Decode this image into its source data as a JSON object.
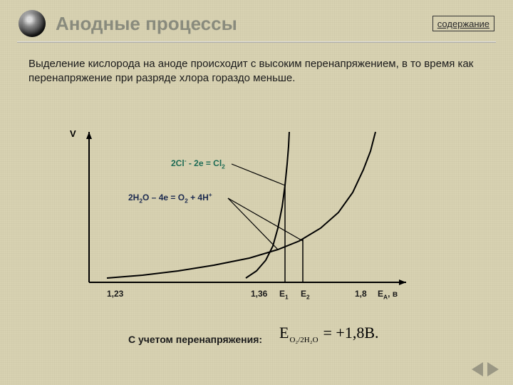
{
  "header": {
    "title": "Анодные процессы",
    "toc_label": "содержание"
  },
  "paragraph": "Выделение кислорода на аноде происходит с высоким перенапряжением, в то время как перенапряжение при разряде хлора гораздо меньше.",
  "chart": {
    "type": "line",
    "y_label": "V",
    "background_color": "#d8d2b2",
    "axis_color": "#000000",
    "axis_width": 2,
    "curve_color": "#000000",
    "curve_width": 2,
    "xlim": [
      0,
      480
    ],
    "ylim": [
      0,
      210
    ],
    "x_ticks": [
      {
        "x": 60,
        "label": "1,23"
      },
      {
        "x": 262,
        "label": "1,36"
      },
      {
        "x": 302,
        "label_html": "E<sub>1</sub>"
      },
      {
        "x": 332,
        "label_html": "E<sub>2</sub>"
      },
      {
        "x": 408,
        "label": "1,8"
      },
      {
        "x": 440,
        "label_html": "E<sub>A</sub>, в"
      }
    ],
    "curves": [
      {
        "name": "O2",
        "label_html": "2H<sub>2</sub>O – 4e = O<sub>2</sub> + 4H<sup>+</sup>",
        "label_color": "#1c2a4f",
        "label_pos": {
          "x": 90,
          "y": 88
        },
        "points": [
          [
            60,
            210
          ],
          [
            110,
            206
          ],
          [
            160,
            200
          ],
          [
            210,
            192
          ],
          [
            260,
            182
          ],
          [
            300,
            170
          ],
          [
            330,
            158
          ],
          [
            360,
            140
          ],
          [
            385,
            118
          ],
          [
            405,
            90
          ],
          [
            420,
            58
          ],
          [
            430,
            32
          ],
          [
            437,
            5
          ]
        ]
      },
      {
        "name": "Cl2",
        "label_html": "2Cl<sup>-</sup> - 2e = Cl<sub>2</sub>",
        "label_color": "#1d6b54",
        "label_pos": {
          "x": 150,
          "y": 40
        },
        "points": [
          [
            255,
            210
          ],
          [
            270,
            200
          ],
          [
            283,
            185
          ],
          [
            293,
            165
          ],
          [
            300,
            140
          ],
          [
            306,
            110
          ],
          [
            310,
            80
          ],
          [
            313,
            50
          ],
          [
            315,
            25
          ],
          [
            316,
            5
          ]
        ]
      }
    ],
    "verticals": [
      {
        "x": 310,
        "y_from": 80,
        "y_to": 216
      },
      {
        "x": 335,
        "y_from": 155,
        "y_to": 216
      }
    ],
    "callout_lines": [
      {
        "from": [
          235,
          50
        ],
        "to": [
          310,
          80
        ]
      },
      {
        "from": [
          230,
          98
        ],
        "to": [
          300,
          170
        ]
      },
      {
        "from": [
          230,
          98
        ],
        "to": [
          335,
          158
        ]
      }
    ]
  },
  "footer": {
    "caption": "С учетом перенапряжения:",
    "formula": {
      "lhs_base": "E",
      "lhs_sub": "O₂/2H₂O",
      "rhs": "= +1,8B."
    }
  },
  "nav": {
    "prev": "previous-slide",
    "next": "next-slide"
  }
}
